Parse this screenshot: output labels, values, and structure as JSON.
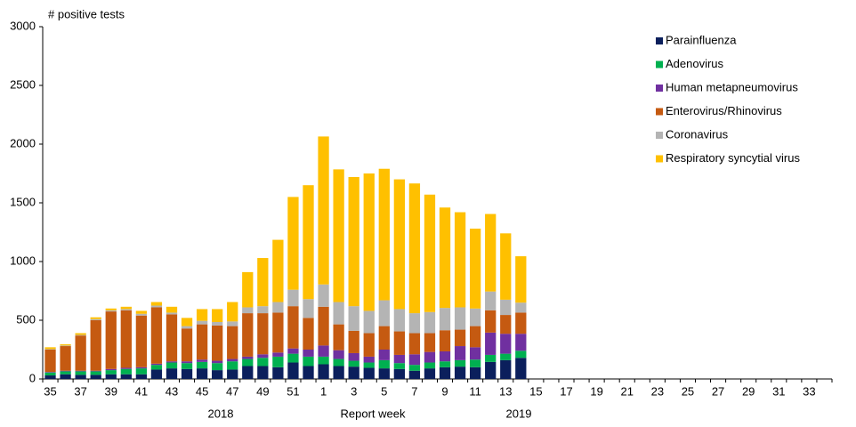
{
  "chart_data": {
    "type": "stacked_bar",
    "ylabel": "# positive tests",
    "xlabel": "Report week",
    "year_labels": [
      "2018",
      "2019"
    ],
    "categories": [
      "35",
      null,
      "37",
      null,
      "39",
      null,
      "41",
      null,
      "43",
      null,
      "45",
      null,
      "47",
      null,
      "49",
      null,
      "51",
      null,
      "1",
      null,
      "3",
      null,
      "5",
      null,
      "7",
      null,
      "9",
      null,
      "11",
      null,
      "13",
      null,
      "15",
      null,
      "17",
      null,
      "19",
      null,
      "21",
      null,
      "23",
      null,
      "25",
      null,
      "27",
      null,
      "29",
      null,
      "31",
      null,
      "33",
      null
    ],
    "ylim": [
      0,
      3000
    ],
    "yticks": [
      0,
      500,
      1000,
      1500,
      2000,
      2500,
      3000
    ],
    "legend": "top-right",
    "series": [
      {
        "name": "Parainfluenza",
        "color": "#0b1f5c",
        "values": [
          30,
          40,
          35,
          35,
          40,
          40,
          40,
          80,
          90,
          85,
          90,
          75,
          80,
          110,
          110,
          100,
          140,
          110,
          125,
          110,
          105,
          95,
          90,
          85,
          70,
          90,
          100,
          105,
          100,
          145,
          160,
          180,
          null,
          null,
          null,
          null,
          null,
          null,
          null,
          null,
          null,
          null,
          null,
          null,
          null,
          null,
          null,
          null,
          null,
          null,
          null,
          null
        ]
      },
      {
        "name": "Adenovirus",
        "color": "#00b050",
        "values": [
          25,
          25,
          30,
          30,
          35,
          45,
          50,
          40,
          50,
          50,
          55,
          60,
          70,
          60,
          70,
          90,
          75,
          80,
          65,
          60,
          50,
          45,
          70,
          50,
          50,
          50,
          50,
          55,
          65,
          60,
          55,
          60,
          null,
          null,
          null,
          null,
          null,
          null,
          null,
          null,
          null,
          null,
          null,
          null,
          null,
          null,
          null,
          null,
          null,
          null,
          null,
          null
        ]
      },
      {
        "name": "Human metapneumovirus",
        "color": "#7030a0",
        "values": [
          5,
          5,
          5,
          5,
          10,
          10,
          10,
          10,
          10,
          15,
          20,
          20,
          20,
          20,
          30,
          35,
          45,
          60,
          95,
          75,
          65,
          50,
          90,
          70,
          90,
          90,
          85,
          120,
          105,
          190,
          170,
          145,
          null,
          null,
          null,
          null,
          null,
          null,
          null,
          null,
          null,
          null,
          null,
          null,
          null,
          null,
          null,
          null,
          null,
          null,
          null,
          null
        ]
      },
      {
        "name": "Enterovirus/Rhinovirus",
        "color": "#c55a11",
        "values": [
          190,
          210,
          300,
          430,
          490,
          490,
          440,
          480,
          400,
          280,
          300,
          300,
          280,
          370,
          350,
          340,
          360,
          270,
          330,
          220,
          190,
          200,
          200,
          200,
          180,
          160,
          180,
          140,
          180,
          190,
          160,
          180,
          null,
          null,
          null,
          null,
          null,
          null,
          null,
          null,
          null,
          null,
          null,
          null,
          null,
          null,
          null,
          null,
          null,
          null,
          null,
          null
        ]
      },
      {
        "name": "Coronavirus",
        "color": "#b4b4b4",
        "values": [
          5,
          5,
          5,
          10,
          10,
          10,
          15,
          15,
          15,
          20,
          30,
          30,
          40,
          50,
          60,
          90,
          140,
          160,
          190,
          190,
          210,
          190,
          220,
          190,
          170,
          180,
          190,
          190,
          150,
          160,
          130,
          85,
          null,
          null,
          null,
          null,
          null,
          null,
          null,
          null,
          null,
          null,
          null,
          null,
          null,
          null,
          null,
          null,
          null,
          null,
          null,
          null
        ]
      },
      {
        "name": "Respiratory syncytial virus",
        "color": "#ffc000",
        "values": [
          15,
          10,
          15,
          15,
          15,
          20,
          25,
          30,
          50,
          70,
          100,
          110,
          165,
          300,
          410,
          530,
          790,
          970,
          1260,
          1130,
          1100,
          1170,
          1120,
          1105,
          1105,
          1000,
          855,
          810,
          680,
          660,
          565,
          395,
          null,
          null,
          null,
          null,
          null,
          null,
          null,
          null,
          null,
          null,
          null,
          null,
          null,
          null,
          null,
          null,
          null,
          null,
          null,
          null
        ]
      }
    ]
  }
}
